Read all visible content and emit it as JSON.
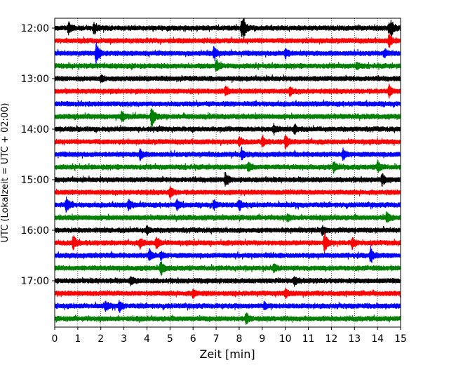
{
  "chart_data": {
    "type": "line",
    "title": "",
    "xlabel": "Zeit  [min]",
    "ylabel": "UTC (Lokalzeit = UTC + 02:00)",
    "xlim": [
      0,
      15
    ],
    "x_ticks": [
      "0",
      "1",
      "2",
      "3",
      "4",
      "5",
      "6",
      "7",
      "8",
      "9",
      "10",
      "11",
      "12",
      "13",
      "14",
      "15"
    ],
    "y_ticks": [
      "12:00",
      "13:00",
      "14:00",
      "15:00",
      "16:00",
      "17:00"
    ],
    "grid": "vertical dotted",
    "legend": "none",
    "colors_cycle": [
      "#000000",
      "#ff0000",
      "#0000ff",
      "#008000"
    ],
    "series": [
      {
        "start": "12:00",
        "color": "#000000",
        "events": [
          [
            0.6,
            0.7
          ],
          [
            1.7,
            0.8
          ],
          [
            8.1,
            1.0
          ],
          [
            8.2,
            0.8
          ],
          [
            14.5,
            0.7
          ],
          [
            14.6,
            0.7
          ]
        ]
      },
      {
        "start": "12:15",
        "color": "#ff0000",
        "events": [
          [
            14.5,
            0.8
          ]
        ]
      },
      {
        "start": "12:30",
        "color": "#0000ff",
        "events": [
          [
            1.8,
            1.4
          ],
          [
            6.9,
            0.7
          ],
          [
            10.0,
            0.6
          ],
          [
            14.3,
            0.5
          ]
        ]
      },
      {
        "start": "12:45",
        "color": "#008000",
        "events": [
          [
            7.0,
            0.8
          ],
          [
            13.1,
            0.4
          ]
        ]
      },
      {
        "start": "13:00",
        "color": "#000000",
        "events": [
          [
            2.0,
            0.4
          ]
        ]
      },
      {
        "start": "13:15",
        "color": "#ff0000",
        "events": [
          [
            7.4,
            0.5
          ],
          [
            10.2,
            0.5
          ],
          [
            14.5,
            0.8
          ]
        ]
      },
      {
        "start": "13:30",
        "color": "#0000ff",
        "events": []
      },
      {
        "start": "13:45",
        "color": "#008000",
        "events": [
          [
            4.2,
            1.5
          ],
          [
            2.9,
            0.6
          ]
        ]
      },
      {
        "start": "14:00",
        "color": "#000000",
        "events": [
          [
            9.5,
            0.6
          ],
          [
            10.4,
            0.6
          ]
        ]
      },
      {
        "start": "14:15",
        "color": "#ff0000",
        "events": [
          [
            8.0,
            0.5
          ],
          [
            9.0,
            0.6
          ],
          [
            10.0,
            0.8
          ]
        ]
      },
      {
        "start": "14:30",
        "color": "#0000ff",
        "events": [
          [
            3.7,
            0.7
          ],
          [
            8.1,
            0.6
          ],
          [
            12.5,
            0.7
          ]
        ]
      },
      {
        "start": "14:45",
        "color": "#008000",
        "events": [
          [
            8.4,
            0.7
          ],
          [
            12.1,
            0.7
          ],
          [
            14.0,
            0.8
          ]
        ]
      },
      {
        "start": "15:00",
        "color": "#000000",
        "events": [
          [
            7.4,
            1.0
          ],
          [
            14.2,
            0.7
          ]
        ]
      },
      {
        "start": "15:15",
        "color": "#ff0000",
        "events": [
          [
            5.0,
            0.8
          ]
        ]
      },
      {
        "start": "15:30",
        "color": "#0000ff",
        "events": [
          [
            0.5,
            0.9
          ],
          [
            3.2,
            0.6
          ],
          [
            5.3,
            0.6
          ],
          [
            6.9,
            0.6
          ],
          [
            8.0,
            0.6
          ]
        ]
      },
      {
        "start": "15:45",
        "color": "#008000",
        "events": [
          [
            10.1,
            0.4
          ],
          [
            14.4,
            0.6
          ]
        ]
      },
      {
        "start": "16:00",
        "color": "#000000",
        "events": [
          [
            4.0,
            0.5
          ],
          [
            11.6,
            0.5
          ]
        ]
      },
      {
        "start": "16:15",
        "color": "#ff0000",
        "events": [
          [
            0.8,
            0.9
          ],
          [
            3.7,
            0.6
          ],
          [
            4.4,
            0.9
          ],
          [
            11.7,
            1.4
          ],
          [
            12.9,
            0.7
          ]
        ]
      },
      {
        "start": "16:30",
        "color": "#0000ff",
        "events": [
          [
            4.1,
            0.8
          ],
          [
            4.6,
            0.5
          ],
          [
            13.7,
            1.0
          ]
        ]
      },
      {
        "start": "16:45",
        "color": "#008000",
        "events": [
          [
            4.6,
            0.9
          ],
          [
            9.5,
            0.5
          ]
        ]
      },
      {
        "start": "17:00",
        "color": "#000000",
        "events": [
          [
            3.3,
            0.5
          ],
          [
            10.4,
            0.6
          ]
        ]
      },
      {
        "start": "17:15",
        "color": "#ff0000",
        "events": [
          [
            6.0,
            0.5
          ],
          [
            10.0,
            0.5
          ]
        ]
      },
      {
        "start": "17:30",
        "color": "#0000ff",
        "events": [
          [
            2.2,
            0.6
          ],
          [
            2.8,
            0.7
          ],
          [
            9.1,
            0.4
          ]
        ]
      },
      {
        "start": "17:45",
        "color": "#008000",
        "events": [
          [
            8.3,
            0.8
          ]
        ]
      }
    ]
  }
}
